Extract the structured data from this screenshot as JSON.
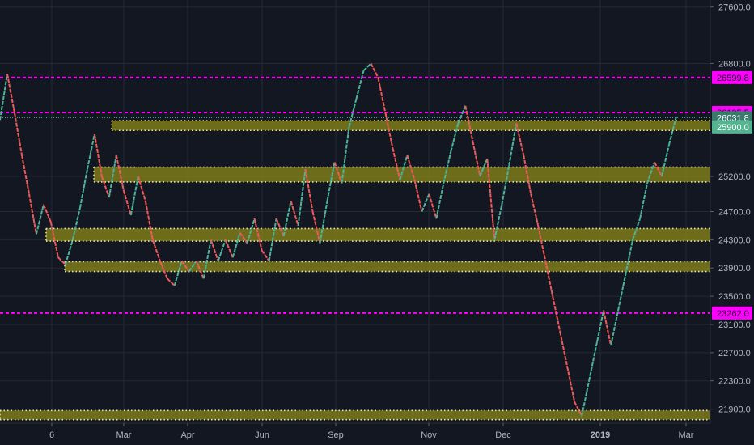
{
  "chart_data": {
    "type": "line",
    "subtype": "renko",
    "title": "",
    "xlabel": "",
    "ylabel": "",
    "ylim": [
      21700,
      27700
    ],
    "grid": true,
    "x_ticks": [
      "6",
      "Mar",
      "Apr",
      "Jun",
      "Sep",
      "Nov",
      "Dec",
      "2019",
      "Mar"
    ],
    "y_ticks": [
      27600.0,
      26800.0,
      25200.0,
      24700.0,
      24300.0,
      23900.0,
      23500.0,
      23100.0,
      22700.0,
      22300.0,
      21900.0
    ],
    "last_price": 26031.8,
    "price_badges": [
      {
        "value": 26599.8,
        "label": "26599.8",
        "kind": "magenta-level"
      },
      {
        "value": 26105.5,
        "label": "26105.5",
        "kind": "magenta-level"
      },
      {
        "value": 26031.8,
        "label": "26031.8",
        "kind": "last-price"
      },
      {
        "value": 25900.0,
        "label": "25900.0",
        "kind": "green-level"
      },
      {
        "value": 23262.0,
        "label": "23262.0",
        "kind": "magenta-level"
      }
    ],
    "support_resistance_zones": [
      {
        "low": 25850,
        "high": 25990
      },
      {
        "low": 25120,
        "high": 25330
      },
      {
        "low": 24280,
        "high": 24460
      },
      {
        "low": 23850,
        "high": 23990
      },
      {
        "low": 21750,
        "high": 21880
      }
    ],
    "series": [
      {
        "price_path": [
          26000,
          26650,
          26100,
          25500,
          24950,
          24380,
          24800,
          24550,
          24050,
          23950,
          24300,
          24750,
          25300,
          25800,
          25200,
          24900,
          25500,
          25000,
          24650,
          25200,
          24850,
          24300,
          24000,
          23750,
          23650,
          24000,
          23850,
          24000,
          23750,
          24300,
          24000,
          24300,
          24050,
          24400,
          24250,
          24600,
          24150,
          24000,
          24600,
          24350,
          24850,
          24500,
          25300,
          24700,
          24250,
          24850,
          25400,
          25100,
          25900,
          26300,
          26700,
          26800,
          26600,
          26100,
          25600,
          25150,
          25500,
          25150,
          24700,
          24950,
          24600,
          25100,
          25550,
          25950,
          26200,
          25700,
          25200,
          25450,
          24300,
          24800,
          25350,
          25950,
          25500,
          24950,
          24500,
          24000,
          23500,
          23000,
          22500,
          22000,
          21800,
          22300,
          22800,
          23300,
          22800,
          23300,
          23800,
          24300,
          24600,
          25100,
          25400,
          25200,
          25650,
          26050
        ]
      }
    ]
  },
  "colors": {
    "background": "#131722",
    "grid": "#242935",
    "up": "#4db39a",
    "down": "#f05a5a",
    "zone_fill": "#8c8a1a",
    "zone_dots": "#e6e3a3",
    "magenta": "#ff00ff",
    "axis_text": "#b2b5be",
    "last_price_badge": "#3a7b6e",
    "green_badge": "#52b58f"
  }
}
